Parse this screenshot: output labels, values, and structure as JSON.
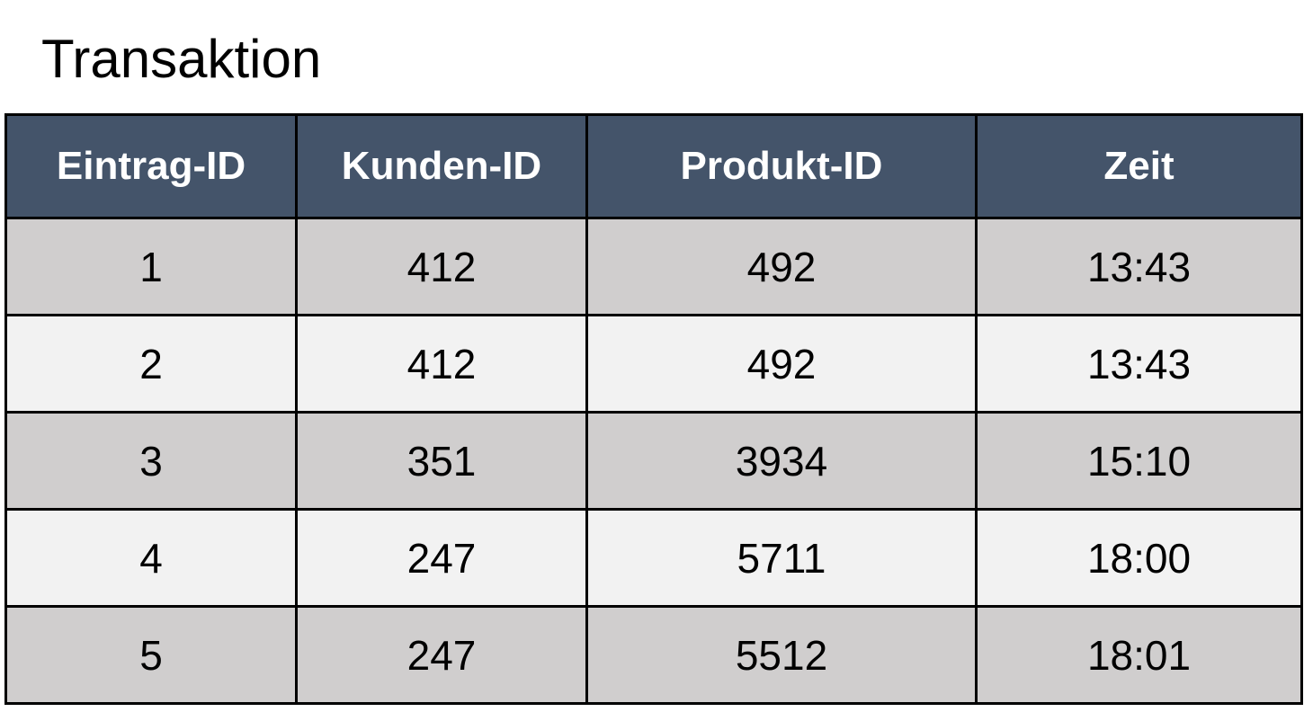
{
  "title": "Transaktion",
  "table": {
    "headers": [
      "Eintrag-ID",
      "Kunden-ID",
      "Produkt-ID",
      "Zeit"
    ],
    "rows": [
      [
        "1",
        "412",
        "492",
        "13:43"
      ],
      [
        "2",
        "412",
        "492",
        "13:43"
      ],
      [
        "3",
        "351",
        "3934",
        "15:10"
      ],
      [
        "4",
        "247",
        "5711",
        "18:00"
      ],
      [
        "5",
        "247",
        "5512",
        "18:01"
      ]
    ]
  },
  "colors": {
    "header_bg": "#44546a",
    "header_text": "#ffffff",
    "row_odd_bg": "#d0cece",
    "row_even_bg": "#f2f2f2",
    "border": "#000000"
  }
}
